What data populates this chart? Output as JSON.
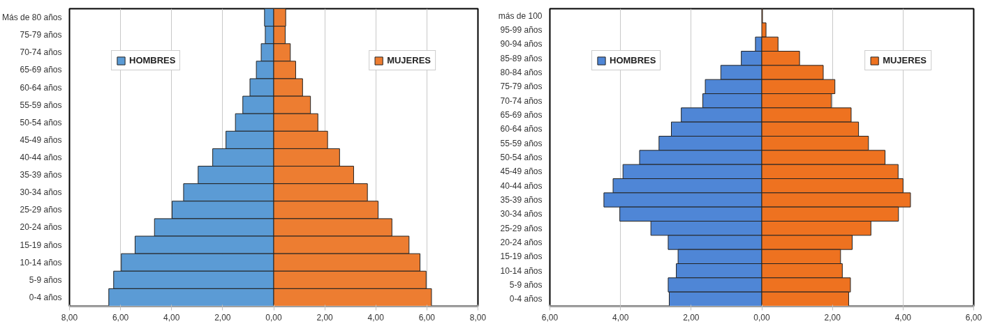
{
  "chart_data": [
    {
      "type": "bar",
      "orientation": "horizontal",
      "categories": [
        "Más de 80 años",
        "75-79 años",
        "70-74 años",
        "65-69 años",
        "60-64 años",
        "55-59 años",
        "50-54 años",
        "45-49 años",
        "40-44 años",
        "35-39 años",
        "30-34 años",
        "25-29 años",
        "20-24 años",
        "15-19 años",
        "10-14 años",
        "5-9 años",
        "0-4 años"
      ],
      "series": [
        {
          "name": "HOMBRES",
          "color": "#5b9bd5",
          "values": [
            -0.36,
            -0.33,
            -0.49,
            -0.68,
            -0.93,
            -1.21,
            -1.5,
            -1.87,
            -2.39,
            -2.96,
            -3.53,
            -3.98,
            -4.67,
            -5.43,
            -5.97,
            -6.27,
            -6.46
          ]
        },
        {
          "name": "MUJERES",
          "color": "#ed7d31",
          "values": [
            0.47,
            0.45,
            0.65,
            0.86,
            1.13,
            1.44,
            1.73,
            2.11,
            2.58,
            3.13,
            3.67,
            4.09,
            4.63,
            5.3,
            5.73,
            5.97,
            6.18
          ]
        }
      ],
      "xlim": [
        -8,
        8
      ],
      "xticks": [
        {
          "value": -8,
          "label": "8,00"
        },
        {
          "value": -6,
          "label": "6,00"
        },
        {
          "value": -4,
          "label": "4,00"
        },
        {
          "value": -2,
          "label": "2,00"
        },
        {
          "value": 0,
          "label": "0,00"
        },
        {
          "value": 2,
          "label": "2,00"
        },
        {
          "value": 4,
          "label": "4,00"
        },
        {
          "value": 6,
          "label": "6,00"
        },
        {
          "value": 8,
          "label": "8,00"
        }
      ],
      "grid": "x",
      "stacked": true,
      "legend": "top"
    },
    {
      "type": "bar",
      "orientation": "horizontal",
      "categories": [
        "más de 100",
        "95-99 años",
        "90-94 años",
        "85-89 años",
        "80-84 años",
        "75-79 años",
        "70-74 años",
        "65-69 años",
        "60-64 años",
        "55-59 años",
        "50-54 años",
        "45-49 años",
        "40-44 años",
        "35-39 años",
        "30-34 años",
        "25-29 años",
        "20-24 años",
        "15-19 años",
        "10-14 años",
        "5-9 años",
        "0-4 años"
      ],
      "series": [
        {
          "name": "HOMBRES",
          "color": "#4f86d6",
          "values": [
            null,
            null,
            -0.18,
            -0.58,
            -1.16,
            -1.6,
            -1.67,
            -2.28,
            -2.56,
            -2.91,
            -3.46,
            -3.93,
            -4.21,
            -4.47,
            -4.02,
            -3.14,
            -2.65,
            -2.37,
            -2.42,
            -2.65,
            -2.62
          ]
        },
        {
          "name": "MUJERES",
          "color": "#ee7220",
          "values": [
            0.02,
            0.12,
            0.46,
            1.07,
            1.74,
            2.07,
            1.97,
            2.53,
            2.74,
            3.02,
            3.49,
            3.86,
            4.0,
            4.21,
            3.87,
            3.09,
            2.56,
            2.23,
            2.28,
            2.51,
            2.46
          ]
        }
      ],
      "xlim": [
        -6,
        6
      ],
      "xticks": [
        {
          "value": -6,
          "label": "6,00"
        },
        {
          "value": -4,
          "label": "4,00"
        },
        {
          "value": -2,
          "label": "2,00"
        },
        {
          "value": 0,
          "label": "0,00"
        },
        {
          "value": 2,
          "label": "2,00"
        },
        {
          "value": 4,
          "label": "4,00"
        },
        {
          "value": 6,
          "label": "6,00"
        }
      ],
      "grid": "x",
      "stacked": true,
      "legend": "top"
    }
  ]
}
